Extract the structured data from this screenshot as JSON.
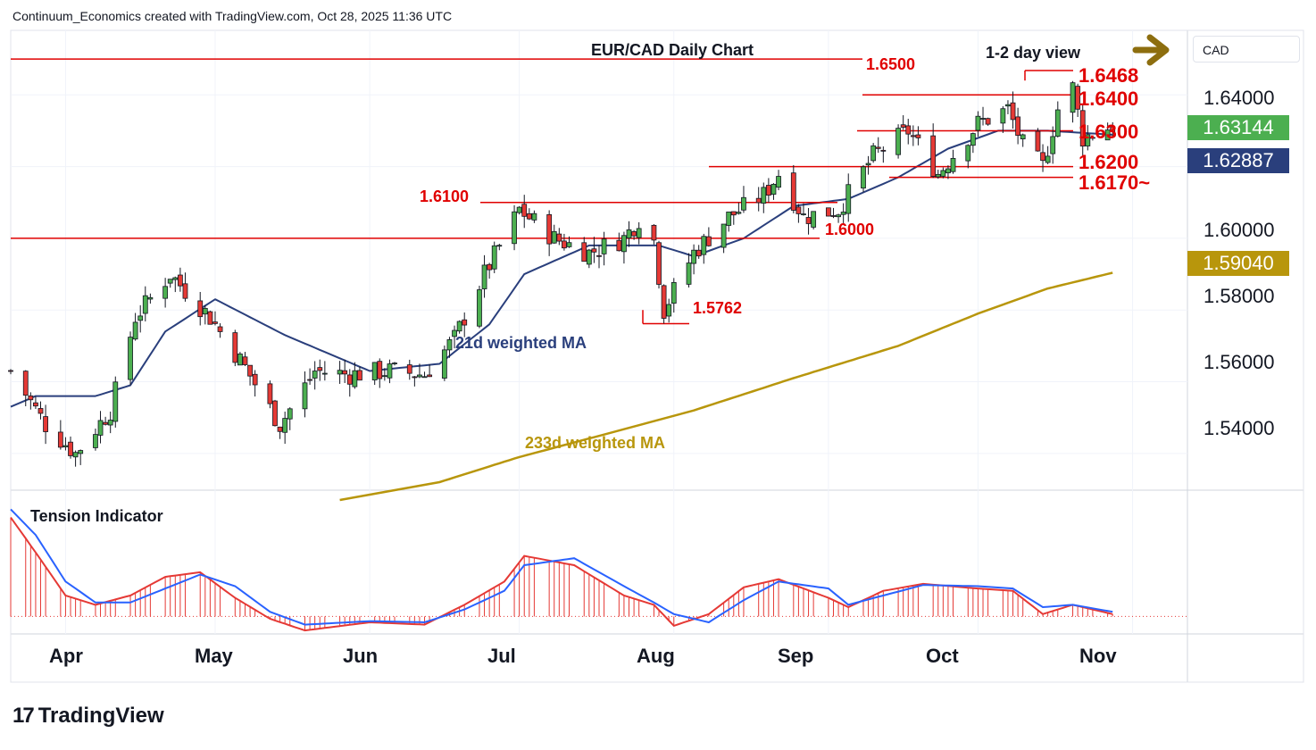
{
  "header": {
    "attribution": "Continuum_Economics created with TradingView.com, Oct 28, 2025 11:36 UTC"
  },
  "footer": {
    "logo_text": "TradingView",
    "logo_mark": "17"
  },
  "price_axis": {
    "currency": "CAD",
    "ticks": [
      "1.64000",
      "1.60000",
      "1.58000",
      "1.56000",
      "1.54000"
    ]
  },
  "badges": [
    {
      "name": "last-close-badge",
      "value": "1.63144",
      "color": "#4caf50"
    },
    {
      "name": "ma21-badge",
      "value": "1.62887",
      "color": "#2a3f7c"
    },
    {
      "name": "ma233-badge",
      "value": "1.59040",
      "color": "#b8960c"
    }
  ],
  "time_axis": [
    "Apr",
    "May",
    "Jun",
    "Jul",
    "Aug",
    "Sep",
    "Oct",
    "Nov"
  ],
  "chart_data": [
    {
      "type": "candlestick",
      "title": "EUR/CAD Daily Chart",
      "subtitle": "1-2 day view",
      "ylim": [
        1.53,
        1.658
      ],
      "x_range": [
        "2025-03-21",
        "2025-11-12"
      ],
      "series_labels": [
        "21d weighted MA",
        "233d weighted MA"
      ],
      "levels": [
        {
          "value": 1.65,
          "label": "1.6500"
        },
        {
          "value": 1.6468,
          "label": "1.6468"
        },
        {
          "value": 1.64,
          "label": "1.6400"
        },
        {
          "value": 1.63,
          "label": "1.6300"
        },
        {
          "value": 1.62,
          "label": "1.6200"
        },
        {
          "value": 1.617,
          "label": "1.6170~"
        },
        {
          "value": 1.61,
          "label": "1.6100"
        },
        {
          "value": 1.6,
          "label": "1.6000"
        },
        {
          "value": 1.5762,
          "label": "1.5762"
        }
      ],
      "close_anchors": [
        [
          "2025-03-21",
          1.563
        ],
        [
          "2025-03-28",
          1.548
        ],
        [
          "2025-04-03",
          1.54
        ],
        [
          "2025-04-10",
          1.552
        ],
        [
          "2025-04-15",
          1.578
        ],
        [
          "2025-04-22",
          1.59
        ],
        [
          "2025-04-30",
          1.578
        ],
        [
          "2025-05-07",
          1.564
        ],
        [
          "2025-05-14",
          1.548
        ],
        [
          "2025-05-21",
          1.563
        ],
        [
          "2025-05-28",
          1.562
        ],
        [
          "2025-06-05",
          1.563
        ],
        [
          "2025-06-12",
          1.562
        ],
        [
          "2025-06-18",
          1.572
        ],
        [
          "2025-06-24",
          1.59
        ],
        [
          "2025-07-01",
          1.608
        ],
        [
          "2025-07-08",
          1.6
        ],
        [
          "2025-07-15",
          1.596
        ],
        [
          "2025-07-22",
          1.6
        ],
        [
          "2025-07-27",
          1.609
        ],
        [
          "2025-07-30",
          1.58
        ],
        [
          "2025-08-05",
          1.596
        ],
        [
          "2025-08-12",
          1.606
        ],
        [
          "2025-08-19",
          1.612
        ],
        [
          "2025-08-22",
          1.618
        ],
        [
          "2025-08-27",
          1.606
        ],
        [
          "2025-09-03",
          1.608
        ],
        [
          "2025-09-10",
          1.623
        ],
        [
          "2025-09-17",
          1.63
        ],
        [
          "2025-09-23",
          1.618
        ],
        [
          "2025-10-01",
          1.632
        ],
        [
          "2025-10-07",
          1.636
        ],
        [
          "2025-10-10",
          1.626
        ],
        [
          "2025-10-14",
          1.62
        ],
        [
          "2025-10-17",
          1.636
        ],
        [
          "2025-10-20",
          1.642
        ],
        [
          "2025-10-22",
          1.628
        ],
        [
          "2025-10-28",
          1.6314
        ]
      ],
      "ma21_anchors": [
        [
          "2025-03-21",
          1.553
        ],
        [
          "2025-03-26",
          1.556
        ],
        [
          "2025-04-07",
          1.556
        ],
        [
          "2025-04-14",
          1.559
        ],
        [
          "2025-04-21",
          1.574
        ],
        [
          "2025-05-01",
          1.583
        ],
        [
          "2025-05-15",
          1.573
        ],
        [
          "2025-06-01",
          1.563
        ],
        [
          "2025-06-15",
          1.565
        ],
        [
          "2025-06-25",
          1.576
        ],
        [
          "2025-07-02",
          1.59
        ],
        [
          "2025-07-15",
          1.598
        ],
        [
          "2025-07-29",
          1.598
        ],
        [
          "2025-08-05",
          1.595
        ],
        [
          "2025-08-15",
          1.6
        ],
        [
          "2025-08-25",
          1.609
        ],
        [
          "2025-09-05",
          1.611
        ],
        [
          "2025-09-15",
          1.617
        ],
        [
          "2025-09-25",
          1.625
        ],
        [
          "2025-10-05",
          1.63
        ],
        [
          "2025-10-15",
          1.63
        ],
        [
          "2025-10-28",
          1.6289
        ]
      ],
      "ma233_anchors": [
        [
          "2025-05-26",
          1.527
        ],
        [
          "2025-06-15",
          1.532
        ],
        [
          "2025-07-01",
          1.539
        ],
        [
          "2025-07-20",
          1.546
        ],
        [
          "2025-08-05",
          1.552
        ],
        [
          "2025-08-25",
          1.561
        ],
        [
          "2025-09-15",
          1.57
        ],
        [
          "2025-10-01",
          1.579
        ],
        [
          "2025-10-15",
          1.586
        ],
        [
          "2025-10-28",
          1.5904
        ]
      ]
    },
    {
      "type": "area",
      "title": "Tension Indicator",
      "ylim": [
        -0.15,
        1.0
      ],
      "hist_anchors": [
        [
          "2025-03-21",
          0.85
        ],
        [
          "2025-03-26",
          0.55
        ],
        [
          "2025-04-01",
          0.18
        ],
        [
          "2025-04-07",
          0.1
        ],
        [
          "2025-04-14",
          0.18
        ],
        [
          "2025-04-21",
          0.34
        ],
        [
          "2025-04-28",
          0.38
        ],
        [
          "2025-05-05",
          0.16
        ],
        [
          "2025-05-12",
          -0.02
        ],
        [
          "2025-05-19",
          -0.12
        ],
        [
          "2025-06-01",
          -0.05
        ],
        [
          "2025-06-12",
          -0.07
        ],
        [
          "2025-06-20",
          0.1
        ],
        [
          "2025-06-28",
          0.3
        ],
        [
          "2025-07-02",
          0.52
        ],
        [
          "2025-07-12",
          0.44
        ],
        [
          "2025-07-22",
          0.18
        ],
        [
          "2025-07-28",
          0.1
        ],
        [
          "2025-08-01",
          -0.08
        ],
        [
          "2025-08-08",
          0.02
        ],
        [
          "2025-08-15",
          0.25
        ],
        [
          "2025-08-22",
          0.32
        ],
        [
          "2025-09-01",
          0.16
        ],
        [
          "2025-09-05",
          0.08
        ],
        [
          "2025-09-12",
          0.22
        ],
        [
          "2025-09-20",
          0.28
        ],
        [
          "2025-10-01",
          0.24
        ],
        [
          "2025-10-08",
          0.22
        ],
        [
          "2025-10-14",
          0.02
        ],
        [
          "2025-10-20",
          0.1
        ],
        [
          "2025-10-28",
          0.02
        ]
      ],
      "signal_anchors": [
        [
          "2025-03-21",
          0.92
        ],
        [
          "2025-03-26",
          0.7
        ],
        [
          "2025-04-01",
          0.3
        ],
        [
          "2025-04-07",
          0.12
        ],
        [
          "2025-04-14",
          0.12
        ],
        [
          "2025-04-21",
          0.24
        ],
        [
          "2025-04-28",
          0.36
        ],
        [
          "2025-05-05",
          0.26
        ],
        [
          "2025-05-12",
          0.04
        ],
        [
          "2025-05-19",
          -0.07
        ],
        [
          "2025-06-01",
          -0.04
        ],
        [
          "2025-06-12",
          -0.05
        ],
        [
          "2025-06-20",
          0.06
        ],
        [
          "2025-06-28",
          0.22
        ],
        [
          "2025-07-02",
          0.44
        ],
        [
          "2025-07-12",
          0.5
        ],
        [
          "2025-07-22",
          0.26
        ],
        [
          "2025-07-28",
          0.12
        ],
        [
          "2025-08-01",
          0.02
        ],
        [
          "2025-08-08",
          -0.05
        ],
        [
          "2025-08-15",
          0.14
        ],
        [
          "2025-08-22",
          0.3
        ],
        [
          "2025-09-01",
          0.24
        ],
        [
          "2025-09-05",
          0.1
        ],
        [
          "2025-09-12",
          0.18
        ],
        [
          "2025-09-20",
          0.27
        ],
        [
          "2025-10-01",
          0.26
        ],
        [
          "2025-10-08",
          0.24
        ],
        [
          "2025-10-14",
          0.08
        ],
        [
          "2025-10-20",
          0.1
        ],
        [
          "2025-10-28",
          0.04
        ]
      ]
    }
  ],
  "colors": {
    "up": "#4caf50",
    "down": "#e53935",
    "candle_border": "#131722",
    "ma21": "#2a3f7c",
    "ma233": "#b8960c",
    "level": "#e00000",
    "hist": "#e53935",
    "signal": "#2962ff",
    "arrow": "#8d6e0f"
  }
}
